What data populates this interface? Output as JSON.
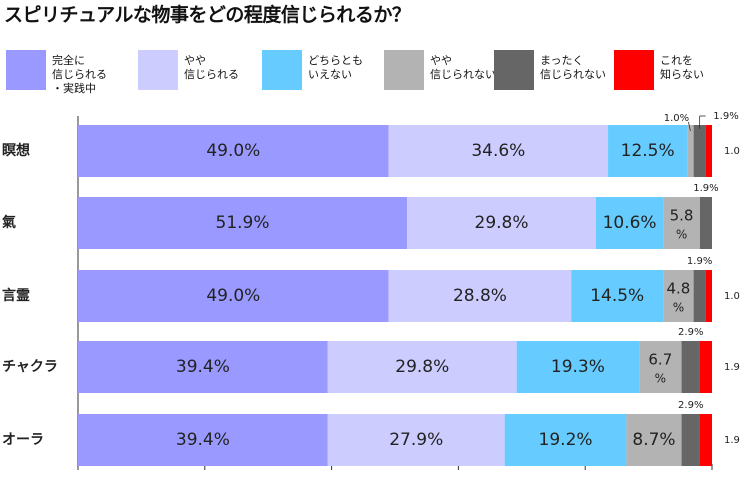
{
  "chart_data": {
    "type": "bar",
    "title": "スピリチュアルな物事をどの程度信じられるか？",
    "categories": [
      "瞑想",
      "氣",
      "言霊",
      "チャクラ",
      "オーラ"
    ],
    "series": [
      {
        "name": "完全に\n信じられる\n・実践中",
        "color": "#9999ff",
        "values": [
          49.0,
          51.9,
          49.0,
          39.4,
          39.4
        ]
      },
      {
        "name": "やや\n信じられる",
        "color": "#ccccff",
        "values": [
          34.6,
          29.8,
          28.8,
          29.8,
          27.9
        ]
      },
      {
        "name": "どちらとも\nいえない",
        "color": "#66ccff",
        "values": [
          12.5,
          10.6,
          14.5,
          19.3,
          19.2
        ]
      },
      {
        "name": "やや\n信じられない",
        "color": "#b3b3b3",
        "values": [
          1.0,
          5.8,
          4.8,
          6.7,
          8.7
        ]
      },
      {
        "name": "まったく\n信じられない",
        "color": "#666666",
        "values": [
          1.9,
          1.9,
          1.9,
          2.9,
          2.9
        ]
      },
      {
        "name": "これを\n知らない",
        "color": "#ff0000",
        "values": [
          1.0,
          0.0,
          1.0,
          1.9,
          1.9
        ]
      }
    ],
    "xlim": [
      0,
      100
    ],
    "stacked": true,
    "orientation": "horizontal",
    "legend": "top",
    "grid": false
  }
}
